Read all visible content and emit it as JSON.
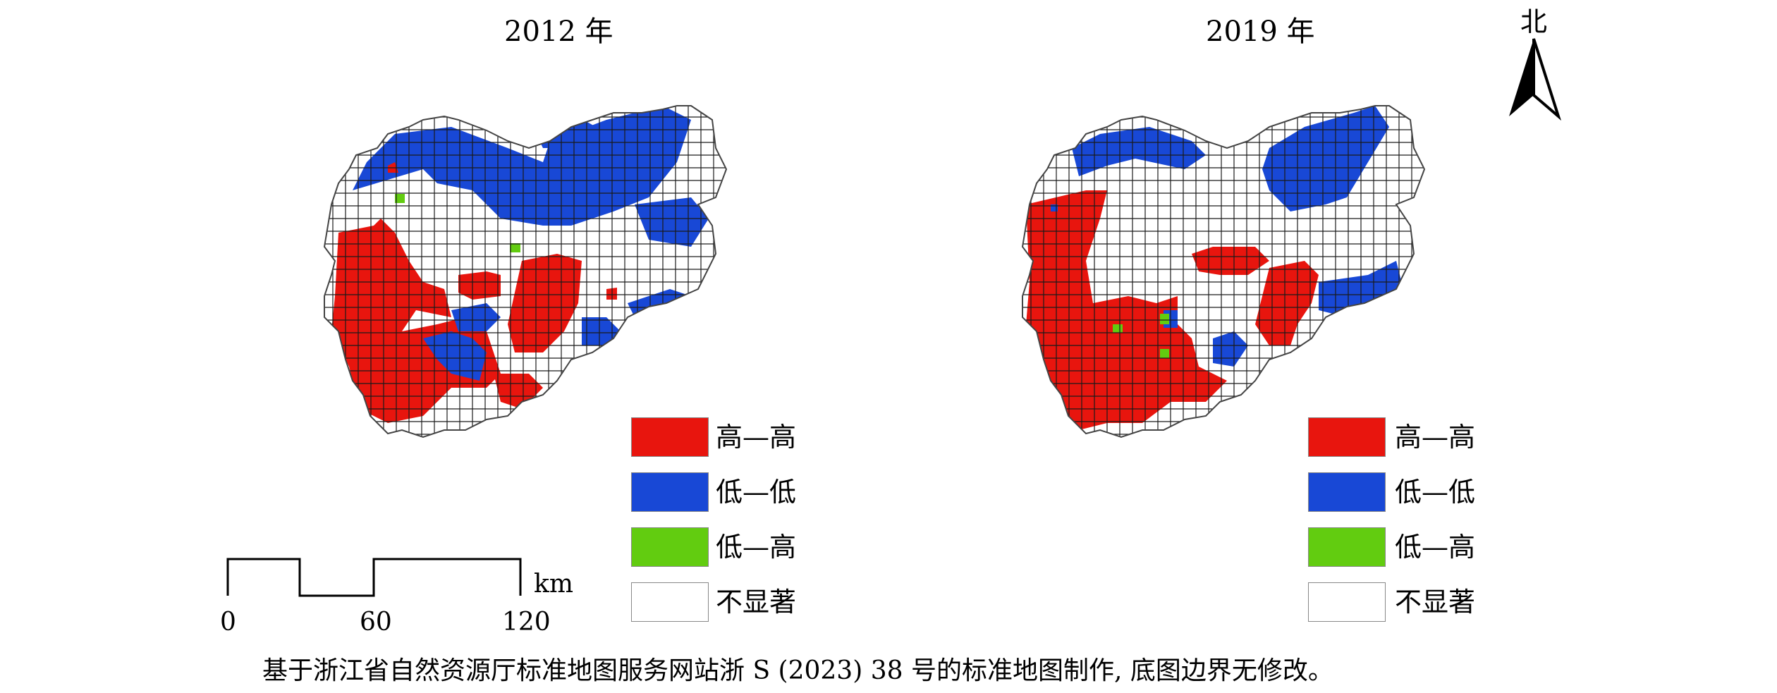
{
  "maps": [
    {
      "title": "2012 年"
    },
    {
      "title": "2019 年"
    }
  ],
  "legend": [
    {
      "label": "高—高",
      "color": "#e8150e"
    },
    {
      "label": "低—低",
      "color": "#1848d6"
    },
    {
      "label": "低—高",
      "color": "#62cc10"
    },
    {
      "label": "不显著",
      "color": "#ffffff"
    }
  ],
  "north_arrow": {
    "label": "北"
  },
  "scale_bar": {
    "ticks": [
      "0",
      "60",
      "120"
    ],
    "unit": "km"
  },
  "caption": "基于浙江省自然资源厅标准地图服务网站浙 S (2023) 38 号的标准地图制作, 底图边界无修改。",
  "colors": {
    "grid_line": "#1a1a1a",
    "outline": "#444444"
  }
}
